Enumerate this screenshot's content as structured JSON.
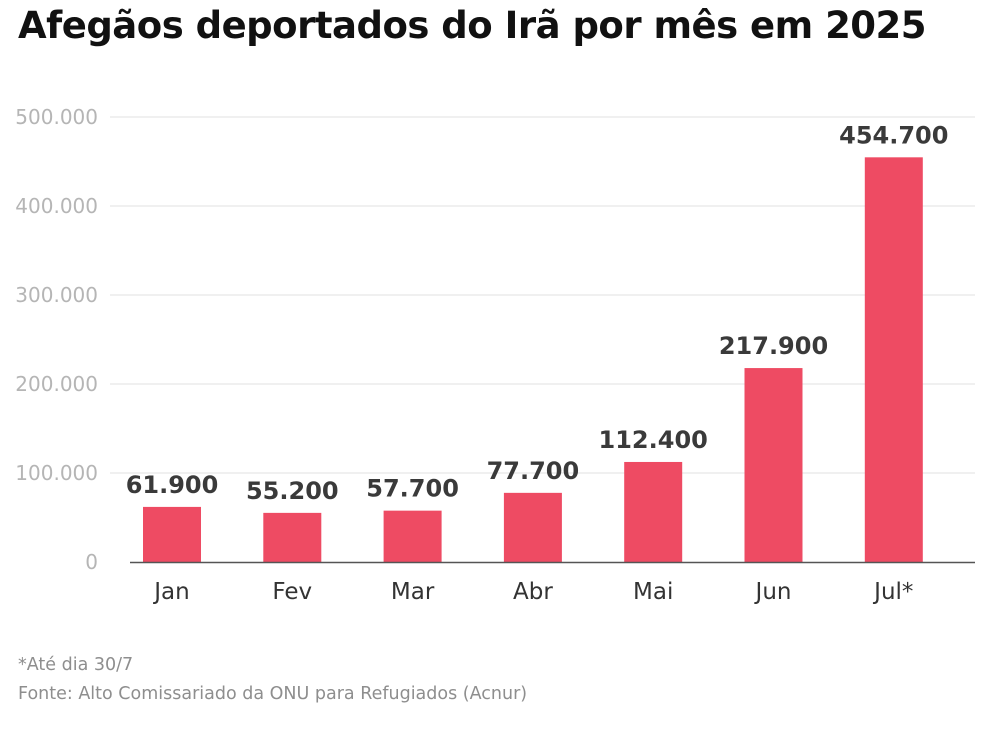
{
  "chart_data": {
    "type": "bar",
    "title": "Afegãos deportados do Irã por mês em 2025",
    "categories": [
      "Jan",
      "Fev",
      "Mar",
      "Abr",
      "Mai",
      "Jun",
      "Jul*"
    ],
    "values": [
      61900,
      55200,
      57700,
      77700,
      112400,
      217900,
      454700
    ],
    "value_labels": [
      "61.900",
      "55.200",
      "57.700",
      "77.700",
      "112.400",
      "217.900",
      "454.700"
    ],
    "ylim": [
      0,
      500000
    ],
    "yticks": [
      0,
      100000,
      200000,
      300000,
      400000,
      500000
    ],
    "ytick_labels": [
      "0",
      "100.000",
      "200.000",
      "300.000",
      "400.000",
      "500.000"
    ],
    "grid": true,
    "bar_color": "#ee4b63",
    "footnote": "*Até dia 30/7",
    "source": "Fonte: Alto Comissariado da ONU para Refugiados (Acnur)"
  }
}
